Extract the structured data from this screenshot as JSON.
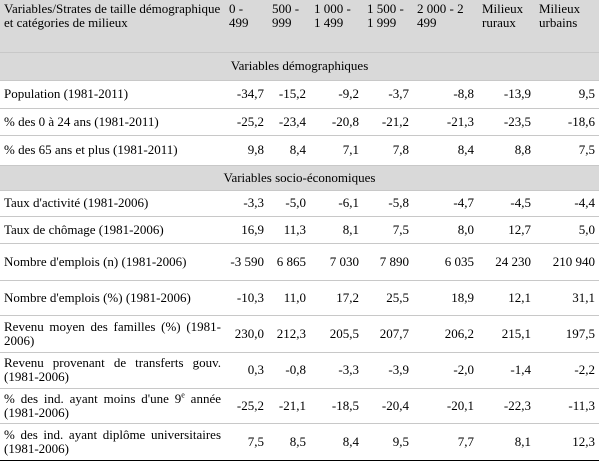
{
  "header": {
    "columns": [
      "Variables/Strates de taille démographique et catégories de milieux",
      "0 - 499",
      "500 - 999",
      "1 000 - 1 499",
      "1 500 - 1 999",
      "2 000 - 2 499",
      "Milieux ruraux",
      "Milieux urbains"
    ]
  },
  "sections": [
    {
      "title": "Variables démographiques",
      "rows": [
        {
          "label": "Population (1981-2011)",
          "values": [
            "-34,7",
            "-15,2",
            "-9,2",
            "-3,7",
            "-8,8",
            "-13,9",
            "9,5"
          ]
        },
        {
          "label": "% des 0 à 24 ans (1981-2011)",
          "values": [
            "-25,2",
            "-23,4",
            "-20,8",
            "-21,2",
            "-21,3",
            "-23,5",
            "-18,6"
          ]
        },
        {
          "label": "% des 65 ans et plus (1981-2011)",
          "values": [
            "9,8",
            "8,4",
            "7,1",
            "7,8",
            "8,4",
            "8,8",
            "7,5"
          ]
        }
      ]
    },
    {
      "title": "Variables socio-économiques",
      "rows": [
        {
          "label": "Taux d'activité (1981-2006)",
          "values": [
            "-3,3",
            "-5,0",
            "-6,1",
            "-5,8",
            "-4,7",
            "-4,5",
            "-4,4"
          ]
        },
        {
          "label": "Taux de chômage (1981-2006)",
          "values": [
            "16,9",
            "11,3",
            "8,1",
            "7,5",
            "8,0",
            "12,7",
            "5,0"
          ]
        },
        {
          "label": "Nombre d'emplois (n) (1981-2006)",
          "values": [
            "-3 590",
            "6 865",
            "7 030",
            "7 890",
            "6 035",
            "24 230",
            "210 940"
          ]
        },
        {
          "label": "Nombre d'emplois (%) (1981-2006)",
          "values": [
            "-10,3",
            "11,0",
            "17,2",
            "25,5",
            "18,9",
            "12,1",
            "31,1"
          ]
        },
        {
          "label": "Revenu moyen des familles (%) (1981-2006)",
          "values": [
            "230,0",
            "212,3",
            "205,5",
            "207,7",
            "206,2",
            "215,1",
            "197,5"
          ]
        },
        {
          "label": "Revenu provenant de transferts gouv. (1981-2006)",
          "values": [
            "0,3",
            "-0,8",
            "-3,3",
            "-3,9",
            "-2,0",
            "-1,4",
            "-2,2"
          ]
        },
        {
          "label": [
            "% des ind. ayant moins d'une 9",
            "e",
            " année (1981-2006)"
          ],
          "values": [
            "-25,2",
            "-21,1",
            "-18,5",
            "-20,4",
            "-20,1",
            "-22,3",
            "-11,3"
          ]
        },
        {
          "label": "% des ind. ayant diplôme universitaires (1981-2006)",
          "values": [
            "7,5",
            "8,5",
            "8,4",
            "9,5",
            "7,7",
            "8,1",
            "12,3"
          ]
        }
      ]
    }
  ]
}
